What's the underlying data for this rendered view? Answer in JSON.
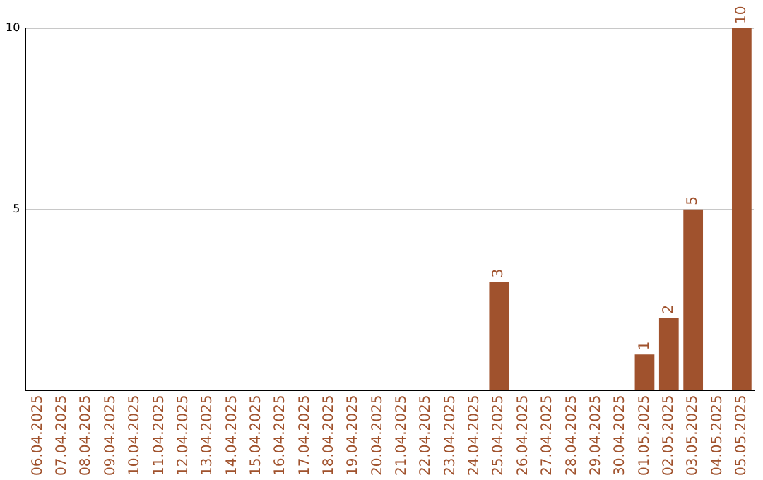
{
  "chart_data": {
    "type": "bar",
    "categories": [
      "06.04.2025",
      "07.04.2025",
      "08.04.2025",
      "09.04.2025",
      "10.04.2025",
      "11.04.2025",
      "12.04.2025",
      "13.04.2025",
      "14.04.2025",
      "15.04.2025",
      "16.04.2025",
      "17.04.2025",
      "18.04.2025",
      "19.04.2025",
      "20.04.2025",
      "21.04.2025",
      "22.04.2025",
      "23.04.2025",
      "24.04.2025",
      "25.04.2025",
      "26.04.2025",
      "27.04.2025",
      "28.04.2025",
      "29.04.2025",
      "30.04.2025",
      "01.05.2025",
      "02.05.2025",
      "03.05.2025",
      "04.05.2025",
      "05.05.2025"
    ],
    "values": [
      0,
      0,
      0,
      0,
      0,
      0,
      0,
      0,
      0,
      0,
      0,
      0,
      0,
      0,
      0,
      0,
      0,
      0,
      0,
      3,
      0,
      0,
      0,
      0,
      0,
      1,
      2,
      5,
      0,
      10
    ],
    "value_labels": [
      null,
      null,
      null,
      null,
      null,
      null,
      null,
      null,
      null,
      null,
      null,
      null,
      null,
      null,
      null,
      null,
      null,
      null,
      null,
      "3",
      null,
      null,
      null,
      null,
      null,
      "1",
      "2",
      "5",
      null,
      "10"
    ],
    "color": "#a0522d",
    "ylim": [
      0,
      10
    ],
    "yticks": [
      {
        "value": 0,
        "label": null
      },
      5,
      10
    ],
    "grid": "y",
    "legend": false
  }
}
